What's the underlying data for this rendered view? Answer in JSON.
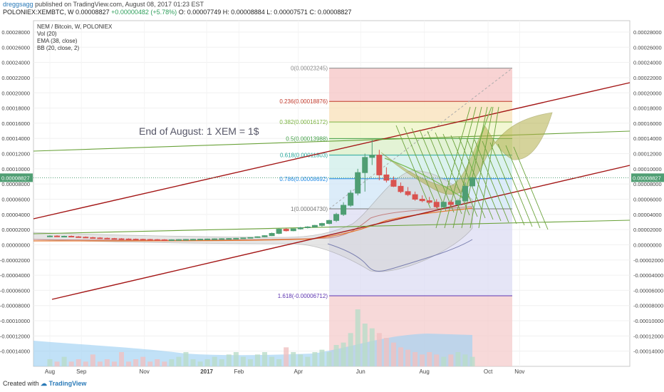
{
  "header": {
    "author": "dreggsagg",
    "published": "published on TradingView.com, August 08, 2017 01:23 EST",
    "symbol": "POLONIEX:XEMBTC, W",
    "price": "0.00008827",
    "change": "+0.00000482 (+5.78%)",
    "ohlc": "O: 0.00007749  H: 0.00008884  L: 0.00007571  C: 0.00008827"
  },
  "legend": [
    "NEM / Bitcoin, W, POLONIEX",
    "Vol (20)",
    "EMA (38, close)",
    "BB (20, close, 2)"
  ],
  "footer": {
    "created_with": "Created with",
    "brand": "TradingView"
  },
  "colors": {
    "up": "#4f9e73",
    "down": "#d9534f",
    "channel": "#a31515",
    "trend": "#6aa23a",
    "fan": "#6aa23a",
    "ema": "#e8772e",
    "bb": "#7a7fb0"
  },
  "chart_data": {
    "type": "candlestick",
    "annotation": "End of August: 1 XEM = 1$",
    "price_tag": "0.00008827",
    "y_ticks": [
      "0.00028000",
      "0.00026000",
      "0.00024000",
      "0.00022000",
      "0.00020000",
      "0.00018000",
      "0.00016000",
      "0.00014000",
      "0.00012000",
      "0.00010000",
      "0.00008000",
      "0.00006000",
      "0.00004000",
      "0.00002000",
      "0.00000000",
      "-0.00002000",
      "-0.00004000",
      "-0.00006000",
      "-0.00008000",
      "-0.00010000",
      "-0.00012000",
      "-0.00014000"
    ],
    "ylim": [
      -0.00016,
      0.000295
    ],
    "x_ticks": [
      {
        "label": "Aug",
        "t": 0
      },
      {
        "label": "Sep",
        "t": 4.4
      },
      {
        "label": "Nov",
        "t": 13.2
      },
      {
        "label": "2017",
        "t": 21.9
      },
      {
        "label": "Feb",
        "t": 26.4
      },
      {
        "label": "Apr",
        "t": 34.7
      },
      {
        "label": "Jun",
        "t": 43.4
      },
      {
        "label": "Aug",
        "t": 52.3
      },
      {
        "label": "Oct",
        "t": 61.2
      },
      {
        "label": "Nov",
        "t": 65.6
      }
    ],
    "fib_levels": [
      {
        "ratio": "0",
        "value": 0.00023245,
        "label": "0(0.00023245)",
        "color": "#888888"
      },
      {
        "ratio": "0.236",
        "value": 0.00018876,
        "label": "0.236(0.00018876)",
        "color": "#c0392b"
      },
      {
        "ratio": "0.382",
        "value": 0.00016172,
        "label": "0.382(0.00016172)",
        "color": "#7cb342"
      },
      {
        "ratio": "0.5",
        "value": 0.00013988,
        "label": "0.5(0.00013988)",
        "color": "#43a047"
      },
      {
        "ratio": "0.618",
        "value": 0.00011803,
        "label": "0.618(0.00011803)",
        "color": "#26a69a"
      },
      {
        "ratio": "0.786",
        "value": 8.692e-05,
        "label": "0.786(0.00008692)",
        "color": "#1e88e5"
      },
      {
        "ratio": "1",
        "value": 4.73e-05,
        "label": "1(0.00004730)",
        "color": "#777777"
      },
      {
        "ratio": "1.618",
        "value": -6.712e-05,
        "label": "1.618(-0.00006712)",
        "color": "#5e35b1"
      }
    ],
    "candles": [
      {
        "t": 0,
        "o": 1.1e-05,
        "h": 1.25e-05,
        "l": 1e-05,
        "c": 1.15e-05
      },
      {
        "t": 1,
        "o": 1.15e-05,
        "h": 1.25e-05,
        "l": 1.05e-05,
        "c": 1.08e-05
      },
      {
        "t": 2,
        "o": 1.08e-05,
        "h": 1.2e-05,
        "l": 1e-05,
        "c": 1.12e-05
      },
      {
        "t": 3,
        "o": 1.12e-05,
        "h": 1.22e-05,
        "l": 1.02e-05,
        "c": 1.05e-05
      },
      {
        "t": 4,
        "o": 1.05e-05,
        "h": 1.15e-05,
        "l": 9.5e-06,
        "c": 1e-05
      },
      {
        "t": 5,
        "o": 1e-05,
        "h": 1.1e-05,
        "l": 9e-06,
        "c": 9.4e-06
      },
      {
        "t": 6,
        "o": 9.4e-06,
        "h": 1.04e-05,
        "l": 8.6e-06,
        "c": 9e-06
      },
      {
        "t": 7,
        "o": 9e-06,
        "h": 1e-05,
        "l": 8.2e-06,
        "c": 8.6e-06
      },
      {
        "t": 8,
        "o": 8.6e-06,
        "h": 9.5e-06,
        "l": 7.8e-06,
        "c": 8.2e-06
      },
      {
        "t": 9,
        "o": 8.2e-06,
        "h": 9e-06,
        "l": 7.5e-06,
        "c": 7.9e-06
      },
      {
        "t": 10,
        "o": 7.9e-06,
        "h": 8.8e-06,
        "l": 7.2e-06,
        "c": 7.6e-06
      },
      {
        "t": 11,
        "o": 7.6e-06,
        "h": 8.5e-06,
        "l": 7e-06,
        "c": 7.4e-06
      },
      {
        "t": 12,
        "o": 7.4e-06,
        "h": 8.2e-06,
        "l": 6.8e-06,
        "c": 7.2e-06
      },
      {
        "t": 13,
        "o": 7.2e-06,
        "h": 8e-06,
        "l": 6.6e-06,
        "c": 7e-06
      },
      {
        "t": 14,
        "o": 7e-06,
        "h": 7.8e-06,
        "l": 6.4e-06,
        "c": 6.8e-06
      },
      {
        "t": 15,
        "o": 6.8e-06,
        "h": 7.6e-06,
        "l": 6.2e-06,
        "c": 6.6e-06
      },
      {
        "t": 16,
        "o": 6.6e-06,
        "h": 7.4e-06,
        "l": 6e-06,
        "c": 6.4e-06
      },
      {
        "t": 17,
        "o": 6.4e-06,
        "h": 7.2e-06,
        "l": 5.8e-06,
        "c": 6.6e-06
      },
      {
        "t": 18,
        "o": 6.6e-06,
        "h": 7.4e-06,
        "l": 6e-06,
        "c": 6.8e-06
      },
      {
        "t": 19,
        "o": 6.8e-06,
        "h": 7.6e-06,
        "l": 6.2e-06,
        "c": 7e-06
      },
      {
        "t": 20,
        "o": 7e-06,
        "h": 7.8e-06,
        "l": 6.4e-06,
        "c": 7.2e-06
      },
      {
        "t": 21,
        "o": 7.2e-06,
        "h": 8e-06,
        "l": 6.6e-06,
        "c": 7.4e-06
      },
      {
        "t": 22,
        "o": 7.4e-06,
        "h": 8.2e-06,
        "l": 6.8e-06,
        "c": 7.6e-06
      },
      {
        "t": 23,
        "o": 7.6e-06,
        "h": 8.4e-06,
        "l": 7e-06,
        "c": 7.8e-06
      },
      {
        "t": 24,
        "o": 7.8e-06,
        "h": 8.6e-06,
        "l": 7.2e-06,
        "c": 8e-06
      },
      {
        "t": 25,
        "o": 8e-06,
        "h": 8.8e-06,
        "l": 7.4e-06,
        "c": 8.2e-06
      },
      {
        "t": 26,
        "o": 8.2e-06,
        "h": 9e-06,
        "l": 7.6e-06,
        "c": 8.5e-06
      },
      {
        "t": 27,
        "o": 8.5e-06,
        "h": 9.3e-06,
        "l": 7.9e-06,
        "c": 9e-06
      },
      {
        "t": 28,
        "o": 9e-06,
        "h": 9.8e-06,
        "l": 8.4e-06,
        "c": 9.6e-06
      },
      {
        "t": 29,
        "o": 9.6e-06,
        "h": 1.1e-05,
        "l": 9.2e-06,
        "c": 1.06e-05
      },
      {
        "t": 30,
        "o": 1.06e-05,
        "h": 1.25e-05,
        "l": 1e-05,
        "c": 1.2e-05
      },
      {
        "t": 31,
        "o": 1.2e-05,
        "h": 1.6e-05,
        "l": 1.15e-05,
        "c": 1.5e-05
      },
      {
        "t": 32,
        "o": 1.5e-05,
        "h": 2.15e-05,
        "l": 1.4e-05,
        "c": 2.05e-05
      },
      {
        "t": 33,
        "o": 2.05e-05,
        "h": 2.2e-05,
        "l": 1.75e-05,
        "c": 1.85e-05
      },
      {
        "t": 34,
        "o": 1.85e-05,
        "h": 2.15e-05,
        "l": 1.78e-05,
        "c": 2.1e-05
      },
      {
        "t": 35,
        "o": 2.1e-05,
        "h": 2.35e-05,
        "l": 2e-05,
        "c": 2.25e-05
      },
      {
        "t": 36,
        "o": 2.25e-05,
        "h": 2.45e-05,
        "l": 2.15e-05,
        "c": 2.35e-05
      },
      {
        "t": 37,
        "o": 2.35e-05,
        "h": 2.62e-05,
        "l": 2.25e-05,
        "c": 2.55e-05
      },
      {
        "t": 38,
        "o": 2.55e-05,
        "h": 2.9e-05,
        "l": 2.4e-05,
        "c": 2.8e-05
      },
      {
        "t": 39,
        "o": 2.8e-05,
        "h": 3.3e-05,
        "l": 2.7e-05,
        "c": 3.2e-05
      },
      {
        "t": 40,
        "o": 3.2e-05,
        "h": 4.2e-05,
        "l": 3e-05,
        "c": 4e-05
      },
      {
        "t": 41,
        "o": 4e-05,
        "h": 5.6e-05,
        "l": 3.8e-05,
        "c": 5.2e-05
      },
      {
        "t": 42,
        "o": 5.2e-05,
        "h": 7.2e-05,
        "l": 5e-05,
        "c": 6.8e-05
      },
      {
        "t": 43,
        "o": 6.8e-05,
        "h": 0.0001,
        "l": 6.5e-05,
        "c": 9.5e-05
      },
      {
        "t": 44,
        "o": 9.5e-05,
        "h": 0.00012,
        "l": 7e-05,
        "c": 0.000115
      },
      {
        "t": 45,
        "o": 0.000115,
        "h": 0.000138,
        "l": 0.000105,
        "c": 0.000118
      },
      {
        "t": 46,
        "o": 0.000118,
        "h": 0.000125,
        "l": 8.5e-05,
        "c": 9.2e-05
      },
      {
        "t": 47,
        "o": 9.2e-05,
        "h": 0.000102,
        "l": 8.2e-05,
        "c": 8.5e-05
      },
      {
        "t": 48,
        "o": 8.5e-05,
        "h": 9e-05,
        "l": 7.6e-05,
        "c": 7.7e-05
      },
      {
        "t": 49,
        "o": 7.7e-05,
        "h": 8.2e-05,
        "l": 6.8e-05,
        "c": 7e-05
      },
      {
        "t": 50,
        "o": 7e-05,
        "h": 7.6e-05,
        "l": 6.4e-05,
        "c": 6.6e-05
      },
      {
        "t": 51,
        "o": 6.6e-05,
        "h": 7e-05,
        "l": 5.8e-05,
        "c": 6e-05
      },
      {
        "t": 52,
        "o": 6e-05,
        "h": 6.5e-05,
        "l": 5.6e-05,
        "c": 5.8e-05
      },
      {
        "t": 53,
        "o": 5.8e-05,
        "h": 6.3e-05,
        "l": 5.4e-05,
        "c": 5.6e-05
      },
      {
        "t": 54,
        "o": 5.6e-05,
        "h": 6e-05,
        "l": 4.8e-05,
        "c": 5e-05
      },
      {
        "t": 55,
        "o": 5e-05,
        "h": 5.7e-05,
        "l": 4.8e-05,
        "c": 5.6e-05
      },
      {
        "t": 56,
        "o": 5.6e-05,
        "h": 5.9e-05,
        "l": 5e-05,
        "c": 5.3e-05
      },
      {
        "t": 57,
        "o": 5.3e-05,
        "h": 6e-05,
        "l": 5.2e-05,
        "c": 5.8e-05
      },
      {
        "t": 58,
        "o": 5.8e-05,
        "h": 8.2e-05,
        "l": 5.6e-05,
        "c": 7.7e-05
      },
      {
        "t": 59,
        "o": 7.75e-05,
        "h": 8.88e-05,
        "l": 7.57e-05,
        "c": 8.83e-05
      }
    ],
    "volume": [
      3,
      2,
      4,
      2,
      3,
      2,
      5,
      2,
      3,
      2,
      6,
      2,
      3,
      4,
      2,
      3,
      2,
      3,
      4,
      6,
      3,
      2,
      3,
      4,
      3,
      5,
      6,
      4,
      3,
      5,
      6,
      4,
      3,
      8,
      6,
      5,
      4,
      6,
      7,
      6,
      9,
      10,
      14,
      24,
      18,
      16,
      14,
      12,
      10,
      8,
      7,
      6,
      5,
      6,
      5,
      4,
      5,
      6,
      5,
      4
    ]
  }
}
